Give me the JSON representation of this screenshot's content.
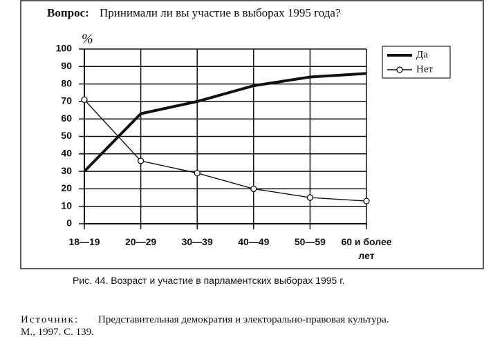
{
  "chart_data": {
    "type": "line",
    "title_label": "Вопрос:",
    "title": "Принимали ли вы участие в выборах 1995 года?",
    "y_label": "%",
    "categories": [
      "18—19",
      "20—29",
      "30—39",
      "40—49",
      "50—59",
      "60 и более лет"
    ],
    "series": [
      {
        "name": "Да",
        "color": "#111111",
        "marker": "none",
        "values": [
          30,
          63,
          70,
          79,
          84,
          86
        ]
      },
      {
        "name": "Нет",
        "color": "#111111",
        "marker": "circle",
        "values": [
          71,
          36,
          29,
          20,
          15,
          13
        ]
      }
    ],
    "ylim": [
      0,
      100
    ],
    "yticks": [
      0,
      10,
      20,
      30,
      40,
      50,
      60,
      70,
      80,
      90,
      100
    ],
    "grid": true,
    "legend": "top-right"
  },
  "caption": "Рис. 44.  Возраст и участие в парламентских выборах 1995 г.",
  "source_label": "Источник:",
  "source": "Представительная демократия и электорально-правовая культура.",
  "source_line2": "М., 1997. С. 139."
}
